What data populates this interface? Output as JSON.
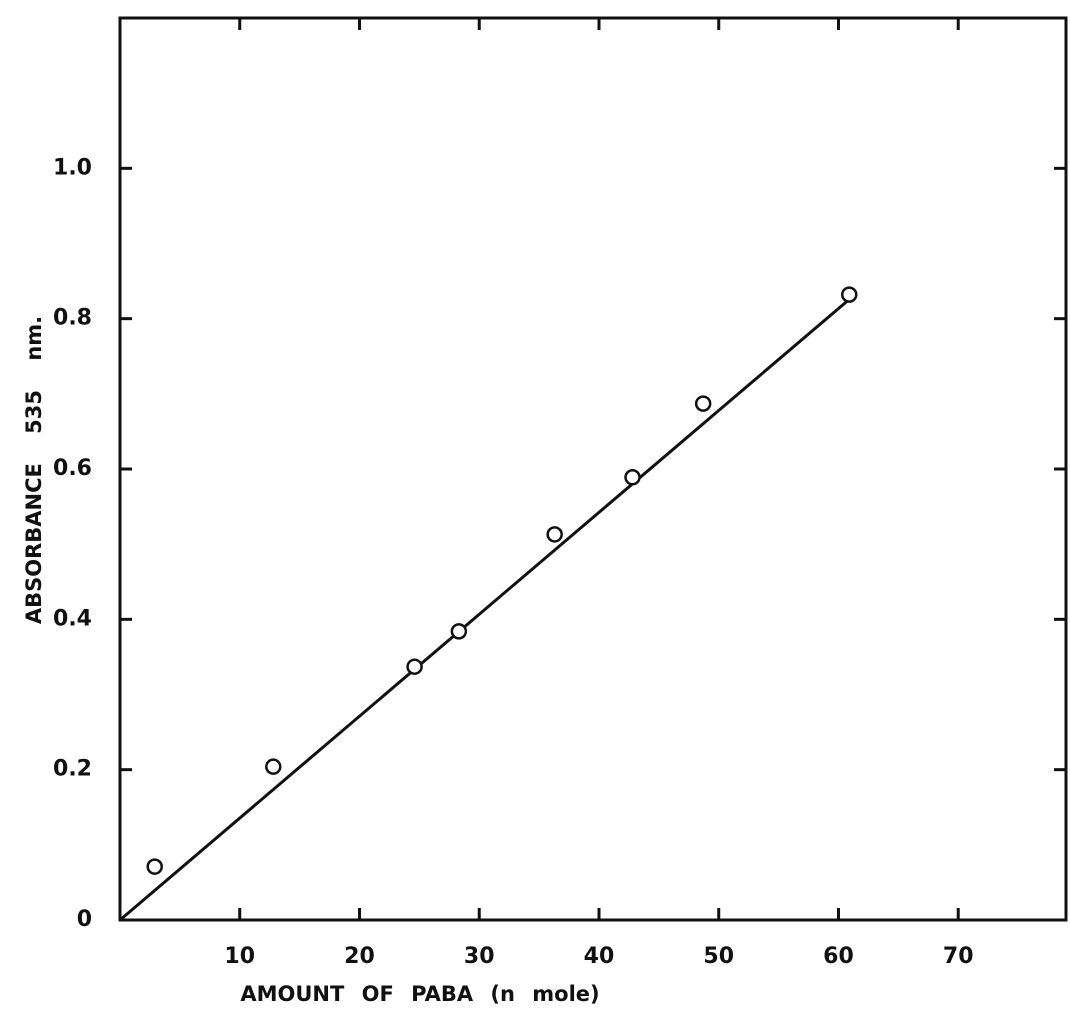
{
  "chart_data": {
    "type": "scatter",
    "x_label": "AMOUNT OF PABA (n mole)",
    "y_label": "ABSORBANCE 535 nm.",
    "x": [
      2.9,
      12.8,
      24.6,
      28.3,
      36.3,
      42.8,
      48.7,
      60.9
    ],
    "values": [
      0.071,
      0.204,
      0.337,
      0.384,
      0.513,
      0.589,
      0.687,
      0.832
    ],
    "color": "#111111",
    "fit": {
      "x": [
        0,
        61
      ],
      "values": [
        0,
        0.827
      ]
    },
    "xlim": [
      0,
      79
    ],
    "ylim": [
      0,
      1.2
    ],
    "xticks": [
      10,
      20,
      30,
      40,
      50,
      60,
      70
    ],
    "yticks": [
      0,
      0.2,
      0.4,
      0.6,
      0.8,
      {
        "value": 1,
        "label": "1.0"
      }
    ]
  }
}
